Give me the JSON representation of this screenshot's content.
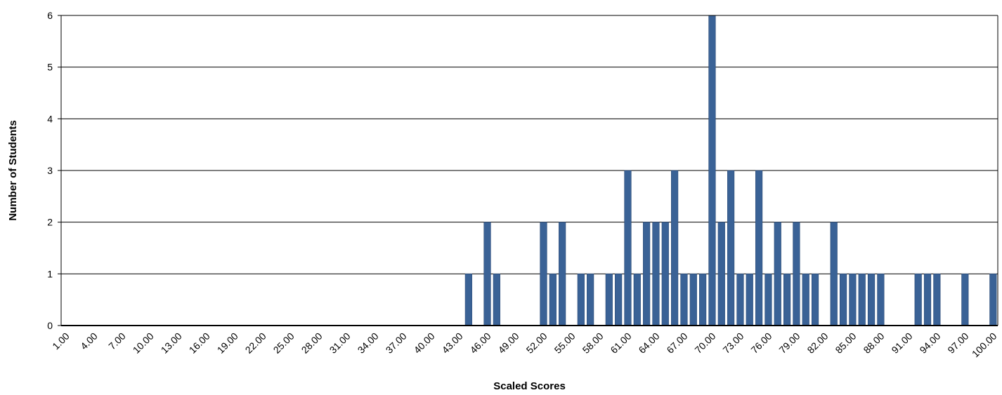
{
  "chart_data": {
    "type": "bar",
    "title": "",
    "xlabel": "Scaled Scores",
    "ylabel": "Number of Students",
    "ylim": [
      0,
      6
    ],
    "yticks": [
      0,
      1,
      2,
      3,
      4,
      5,
      6
    ],
    "grid": true,
    "x_tick_labels": [
      "1.00",
      "4.00",
      "7.00",
      "10.00",
      "13.00",
      "16.00",
      "19.00",
      "22.00",
      "25.00",
      "28.00",
      "31.00",
      "34.00",
      "37.00",
      "40.00",
      "43.00",
      "46.00",
      "49.00",
      "52.00",
      "55.00",
      "58.00",
      "61.00",
      "64.00",
      "67.00",
      "70.00",
      "73.00",
      "76.00",
      "79.00",
      "82.00",
      "85.00",
      "88.00",
      "91.00",
      "94.00",
      "97.00",
      "100.00"
    ],
    "categories": [
      1,
      2,
      3,
      4,
      5,
      6,
      7,
      8,
      9,
      10,
      11,
      12,
      13,
      14,
      15,
      16,
      17,
      18,
      19,
      20,
      21,
      22,
      23,
      24,
      25,
      26,
      27,
      28,
      29,
      30,
      31,
      32,
      33,
      34,
      35,
      36,
      37,
      38,
      39,
      40,
      41,
      42,
      43,
      44,
      45,
      46,
      47,
      48,
      49,
      50,
      51,
      52,
      53,
      54,
      55,
      56,
      57,
      58,
      59,
      60,
      61,
      62,
      63,
      64,
      65,
      66,
      67,
      68,
      69,
      70,
      71,
      72,
      73,
      74,
      75,
      76,
      77,
      78,
      79,
      80,
      81,
      82,
      83,
      84,
      85,
      86,
      87,
      88,
      89,
      90,
      91,
      92,
      93,
      94,
      95,
      96,
      97,
      98,
      99,
      100
    ],
    "values": [
      0,
      0,
      0,
      0,
      0,
      0,
      0,
      0,
      0,
      0,
      0,
      0,
      0,
      0,
      0,
      0,
      0,
      0,
      0,
      0,
      0,
      0,
      0,
      0,
      0,
      0,
      0,
      0,
      0,
      0,
      0,
      0,
      0,
      0,
      0,
      0,
      0,
      0,
      0,
      0,
      0,
      0,
      0,
      1,
      0,
      2,
      1,
      0,
      0,
      0,
      0,
      2,
      1,
      2,
      0,
      1,
      1,
      0,
      1,
      1,
      3,
      1,
      2,
      2,
      2,
      3,
      1,
      1,
      1,
      6,
      2,
      3,
      1,
      1,
      3,
      1,
      2,
      1,
      2,
      1,
      1,
      0,
      2,
      1,
      1,
      1,
      1,
      1,
      0,
      0,
      0,
      1,
      1,
      1,
      0,
      0,
      1,
      0,
      0,
      1
    ],
    "colors": {
      "bar": "#3a6296",
      "bar_edge": "#2a4a76",
      "grid": "#000000"
    }
  }
}
